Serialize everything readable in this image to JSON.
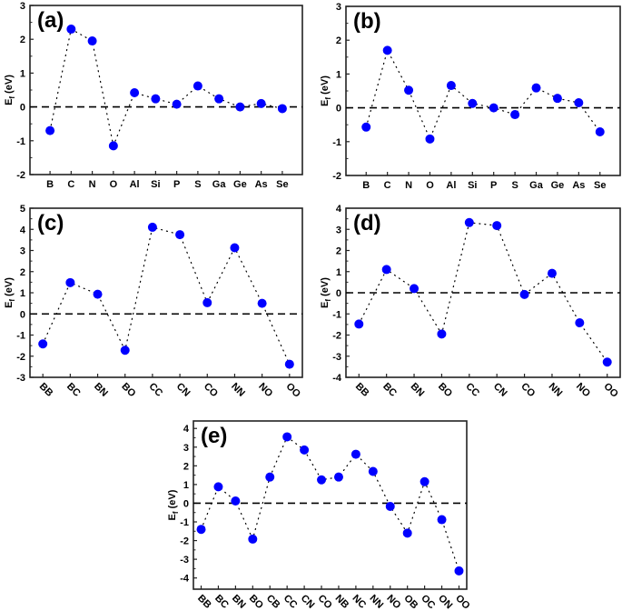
{
  "colors": {
    "marker": "#0000ff",
    "line": "#000000",
    "zero_line": "#000000"
  },
  "chart_data": [
    {
      "type": "line",
      "panel_label": "(a)",
      "ylabel": "E",
      "ylabel_sub": "f",
      "ylabel_unit": " (eV)",
      "ylim": [
        -2,
        3
      ],
      "yticks": [
        -2,
        -1,
        0,
        1,
        2,
        3
      ],
      "zero_line": true,
      "x_label_rotation": 0,
      "categories": [
        "B",
        "C",
        "N",
        "O",
        "Al",
        "Si",
        "P",
        "S",
        "Ga",
        "Ge",
        "As",
        "Se"
      ],
      "values": [
        -0.7,
        2.3,
        1.95,
        -1.15,
        0.42,
        0.24,
        0.08,
        0.62,
        0.24,
        0.0,
        0.1,
        -0.05
      ]
    },
    {
      "type": "line",
      "panel_label": "(b)",
      "ylabel": "E",
      "ylabel_sub": "f",
      "ylabel_unit": " (eV)",
      "ylim": [
        -2,
        3
      ],
      "yticks": [
        -2,
        -1,
        0,
        1,
        2,
        3
      ],
      "zero_line": true,
      "x_label_rotation": 0,
      "categories": [
        "B",
        "C",
        "N",
        "O",
        "Al",
        "Si",
        "P",
        "S",
        "Ga",
        "Ge",
        "As",
        "Se"
      ],
      "values": [
        -0.57,
        1.7,
        0.52,
        -0.92,
        0.66,
        0.13,
        0.0,
        -0.2,
        0.59,
        0.28,
        0.15,
        -0.71
      ]
    },
    {
      "type": "line",
      "panel_label": "(c)",
      "ylabel": "E",
      "ylabel_sub": "f",
      "ylabel_unit": " (eV)",
      "ylim": [
        -3,
        5
      ],
      "yticks": [
        -3,
        -2,
        -1,
        0,
        1,
        2,
        3,
        4,
        5
      ],
      "zero_line": true,
      "x_label_rotation": 45,
      "categories": [
        "BB",
        "BC",
        "BN",
        "BO",
        "CC",
        "CN",
        "CO",
        "NN",
        "NO",
        "OO"
      ],
      "values": [
        -1.42,
        1.48,
        0.93,
        -1.72,
        4.1,
        3.75,
        0.53,
        3.13,
        0.5,
        -2.38
      ]
    },
    {
      "type": "line",
      "panel_label": "(d)",
      "ylabel": "E",
      "ylabel_sub": "f",
      "ylabel_unit": " (eV)",
      "ylim": [
        -4,
        4
      ],
      "yticks": [
        -4,
        -3,
        -2,
        -1,
        0,
        1,
        2,
        3,
        4
      ],
      "zero_line": true,
      "x_label_rotation": 45,
      "categories": [
        "BB",
        "BC",
        "BN",
        "BO",
        "CC",
        "CN",
        "CO",
        "NN",
        "NO",
        "OO"
      ],
      "values": [
        -1.48,
        1.1,
        0.2,
        -1.95,
        3.32,
        3.18,
        -0.08,
        0.92,
        -1.42,
        -3.28
      ]
    },
    {
      "type": "line",
      "panel_label": "(e)",
      "ylabel": "E",
      "ylabel_sub": "f",
      "ylabel_unit": " (eV)",
      "ylim": [
        -4.6,
        4.4
      ],
      "yticks": [
        -4,
        -3,
        -2,
        -1,
        0,
        1,
        2,
        3,
        4
      ],
      "zero_line": true,
      "x_label_rotation": 45,
      "categories": [
        "BB",
        "BC",
        "BN",
        "BO",
        "CB",
        "CC",
        "CN",
        "CO",
        "NB",
        "NC",
        "NN",
        "NO",
        "OB",
        "OC",
        "ON",
        "OO"
      ],
      "values": [
        -1.4,
        0.88,
        0.12,
        -1.92,
        1.4,
        3.55,
        2.85,
        1.25,
        1.4,
        2.62,
        1.7,
        -0.17,
        -1.6,
        1.15,
        -0.88,
        -3.62
      ]
    }
  ]
}
